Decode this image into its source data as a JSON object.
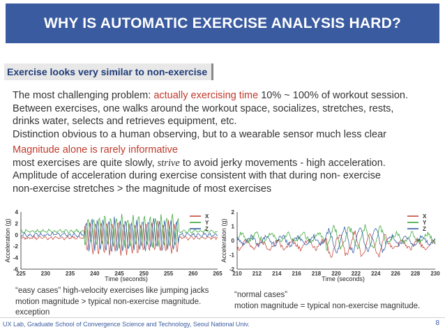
{
  "slide": {
    "title": "WHY IS AUTOMATIC EXERCISE ANALYSIS HARD?",
    "section_heading": "Exercise looks very similar to non-exercise",
    "paragraph1": {
      "line1_a": "The most challenging problem: ",
      "line1_highlight": "actually exercising time",
      "line1_b": " 10% ~ 100% of workout session.",
      "line2": "Between exercises, one walks around the workout space, socializes, stretches, rests,",
      "line3": "drinks water, selects and retrieves equipment, etc.",
      "line4": "Distinction obvious to a human observing, but to a wearable sensor much less clear"
    },
    "sub_heading": "Magnitude alone is rarely informative",
    "paragraph2": {
      "line1_a": "most exercises are quite slowly, ",
      "line1_italic": "strive",
      "line1_b": " to avoid jerky movements - high acceleration.",
      "line2": "Amplitude of acceleration during exercise consistent with that during non- exercise",
      "line3": "non-exercise stretches > the magnitude of most exercises"
    },
    "caption_left": {
      "line1": "“easy cases” high-velocity exercises like jumping jacks",
      "line2": "motion magnitude > typical non-exercise magnitude.",
      "line3": "exception"
    },
    "caption_right": {
      "line1": "“normal cases”",
      "line2": "motion magnitude = typical non-exercise magnitude."
    },
    "footer": "UX Lab, Graduate School of Convergence Science and  Technology, Seoul National Univ.",
    "page_number": "8"
  },
  "colors": {
    "title_bg": "#3a5ba0",
    "accent_red": "#c0392b",
    "x_series": "#c0392b",
    "y_series": "#2ca02c",
    "z_series": "#1f4e9c"
  },
  "chart_data": [
    {
      "type": "line",
      "xlabel": "Time (seconds)",
      "ylabel": "Acceleration (g)",
      "xlim": [
        225,
        265
      ],
      "ylim": [
        -6,
        4
      ],
      "xticks": [
        225,
        230,
        235,
        240,
        245,
        250,
        255,
        260,
        265
      ],
      "yticks": [
        4,
        2,
        0,
        -2,
        -4,
        -6
      ],
      "legend": "top-right",
      "series": [
        {
          "name": "X",
          "color": "#c0392b"
        },
        {
          "name": "Y",
          "color": "#2ca02c"
        },
        {
          "name": "Z",
          "color": "#1f4e9c"
        }
      ],
      "activity_window": [
        238,
        257
      ]
    },
    {
      "type": "line",
      "xlabel": "Time (seconds)",
      "ylabel": "Acceleration (g)",
      "xlim": [
        210,
        230
      ],
      "ylim": [
        -2,
        2
      ],
      "xticks": [
        210,
        212,
        214,
        216,
        218,
        220,
        222,
        224,
        226,
        228,
        230
      ],
      "yticks": [
        2,
        1,
        0,
        -1,
        -2
      ],
      "legend": "top-right",
      "series": [
        {
          "name": "X",
          "color": "#c0392b"
        },
        {
          "name": "Y",
          "color": "#2ca02c"
        },
        {
          "name": "Z",
          "color": "#1f4e9c"
        }
      ],
      "activity_window": [
        219,
        225
      ]
    }
  ]
}
